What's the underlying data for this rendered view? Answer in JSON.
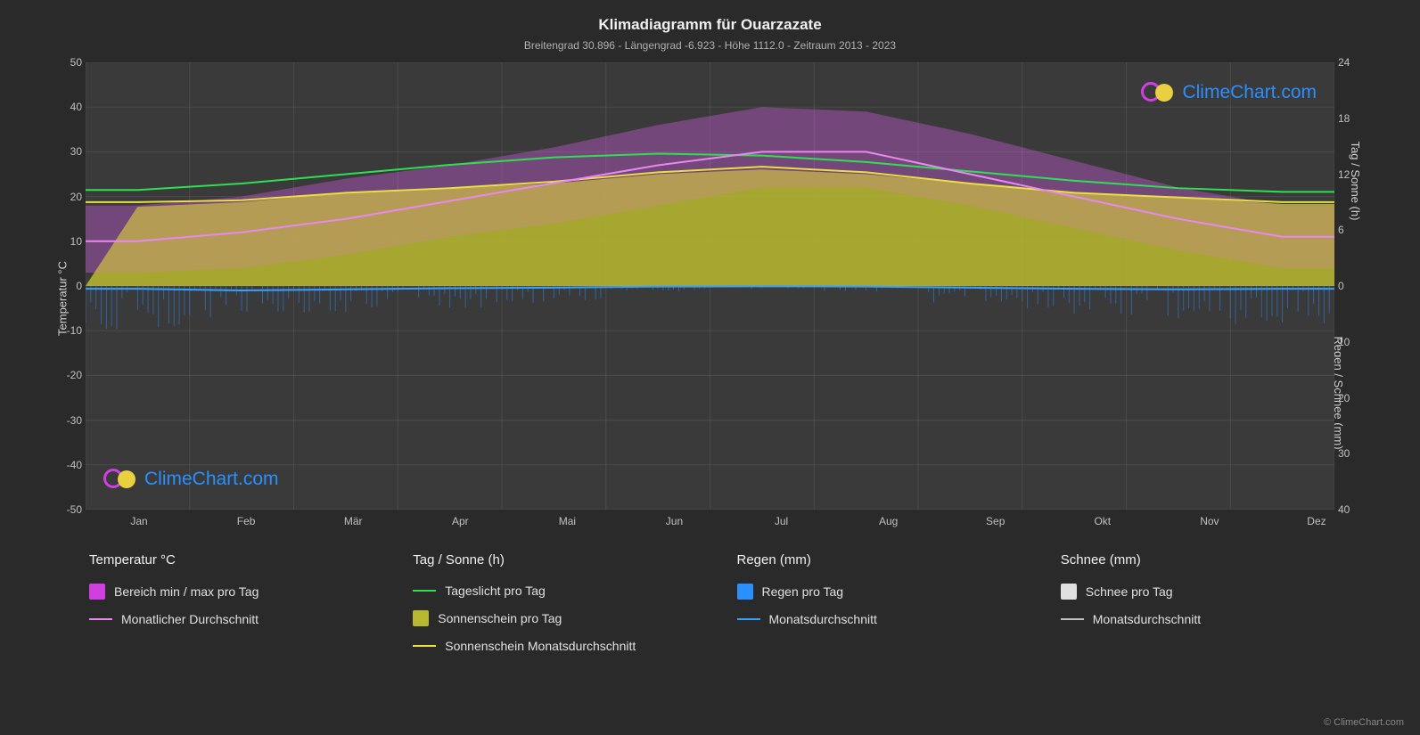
{
  "title": "Klimadiagramm für Ouarzazate",
  "subtitle": "Breitengrad 30.896 - Längengrad -6.923 - Höhe 1112.0 - Zeitraum 2013 - 2023",
  "copyright": "© ClimeChart.com",
  "watermark": "ClimeChart.com",
  "chart": {
    "type": "climate-line-area",
    "background_color": "#3a3a3a",
    "grid_color": "#666666",
    "text_color": "#d0d0d0",
    "months": [
      "Jan",
      "Feb",
      "Mär",
      "Apr",
      "Mai",
      "Jun",
      "Jul",
      "Aug",
      "Sep",
      "Okt",
      "Nov",
      "Dez"
    ],
    "y_left": {
      "label": "Temperatur °C",
      "min": -50,
      "max": 50,
      "step": 10
    },
    "y_right_top": {
      "label": "Tag / Sonne (h)",
      "min": 0,
      "max": 24,
      "step": 6,
      "range_pixels": "top_half"
    },
    "y_right_bottom": {
      "label": "Regen / Schnee (mm)",
      "min": 0,
      "max": 40,
      "step": 10,
      "range_pixels": "bottom_half_inverted"
    },
    "series": {
      "temp_range": {
        "color": "#d040e0",
        "fill": "#e060f0",
        "fill_opacity": 0.7,
        "min": [
          3,
          4,
          7,
          11,
          14,
          18,
          22,
          22,
          18,
          13,
          8,
          4
        ],
        "max": [
          18,
          20,
          24,
          27,
          31,
          36,
          40,
          39,
          34,
          28,
          22,
          18
        ]
      },
      "temp_avg": {
        "color": "#e888f0",
        "width": 2,
        "values": [
          10,
          12,
          15,
          19,
          23,
          27,
          30,
          30,
          25,
          20,
          15,
          11
        ]
      },
      "daylight": {
        "color": "#2ee050",
        "width": 2,
        "values": [
          10.3,
          11,
          12,
          13,
          13.8,
          14.2,
          14,
          13.3,
          12.3,
          11.3,
          10.5,
          10.1
        ]
      },
      "sunshine_area": {
        "color": "#c8c838",
        "fill": "#b8b830",
        "fill_opacity": 0.75,
        "values": [
          8.5,
          9,
          10,
          10.5,
          11,
          12,
          12.5,
          12,
          11,
          10,
          9.5,
          8.8
        ]
      },
      "sunshine_avg": {
        "color": "#e8e040",
        "width": 2,
        "values": [
          9,
          9.2,
          10,
          10.5,
          11.2,
          12.2,
          12.8,
          12.2,
          11,
          10,
          9.5,
          9
        ]
      },
      "rain_bars": {
        "color": "#2a8fff",
        "max_daily": [
          8,
          6,
          5,
          4,
          3,
          1,
          0.5,
          1,
          3,
          5,
          6,
          7
        ]
      },
      "rain_avg": {
        "color": "#3aa0ff",
        "width": 2,
        "values": [
          0.5,
          0.8,
          0.6,
          0.4,
          0.3,
          0.1,
          0.05,
          0.1,
          0.3,
          0.5,
          0.6,
          0.5
        ]
      },
      "snow_bars": {
        "color": "#e0e0e0",
        "max_daily": [
          0,
          0,
          0,
          0,
          0,
          0,
          0,
          0,
          0,
          0,
          0,
          0
        ]
      },
      "snow_avg": {
        "color": "#c0c0c0",
        "width": 2,
        "values": [
          0,
          0,
          0,
          0,
          0,
          0,
          0,
          0,
          0,
          0,
          0,
          0
        ]
      }
    }
  },
  "legend": {
    "col1": {
      "header": "Temperatur °C",
      "items": [
        {
          "type": "box",
          "color": "#d040e0",
          "label": "Bereich min / max pro Tag"
        },
        {
          "type": "line",
          "color": "#e888f0",
          "label": "Monatlicher Durchschnitt"
        }
      ]
    },
    "col2": {
      "header": "Tag / Sonne (h)",
      "items": [
        {
          "type": "line",
          "color": "#2ee050",
          "label": "Tageslicht pro Tag"
        },
        {
          "type": "box",
          "color": "#b8b830",
          "label": "Sonnenschein pro Tag"
        },
        {
          "type": "line",
          "color": "#e8e040",
          "label": "Sonnenschein Monatsdurchschnitt"
        }
      ]
    },
    "col3": {
      "header": "Regen (mm)",
      "items": [
        {
          "type": "box",
          "color": "#2a8fff",
          "label": "Regen pro Tag"
        },
        {
          "type": "line",
          "color": "#3aa0ff",
          "label": "Monatsdurchschnitt"
        }
      ]
    },
    "col4": {
      "header": "Schnee (mm)",
      "items": [
        {
          "type": "box",
          "color": "#e0e0e0",
          "label": "Schnee pro Tag"
        },
        {
          "type": "line",
          "color": "#c0c0c0",
          "label": "Monatsdurchschnitt"
        }
      ]
    }
  }
}
